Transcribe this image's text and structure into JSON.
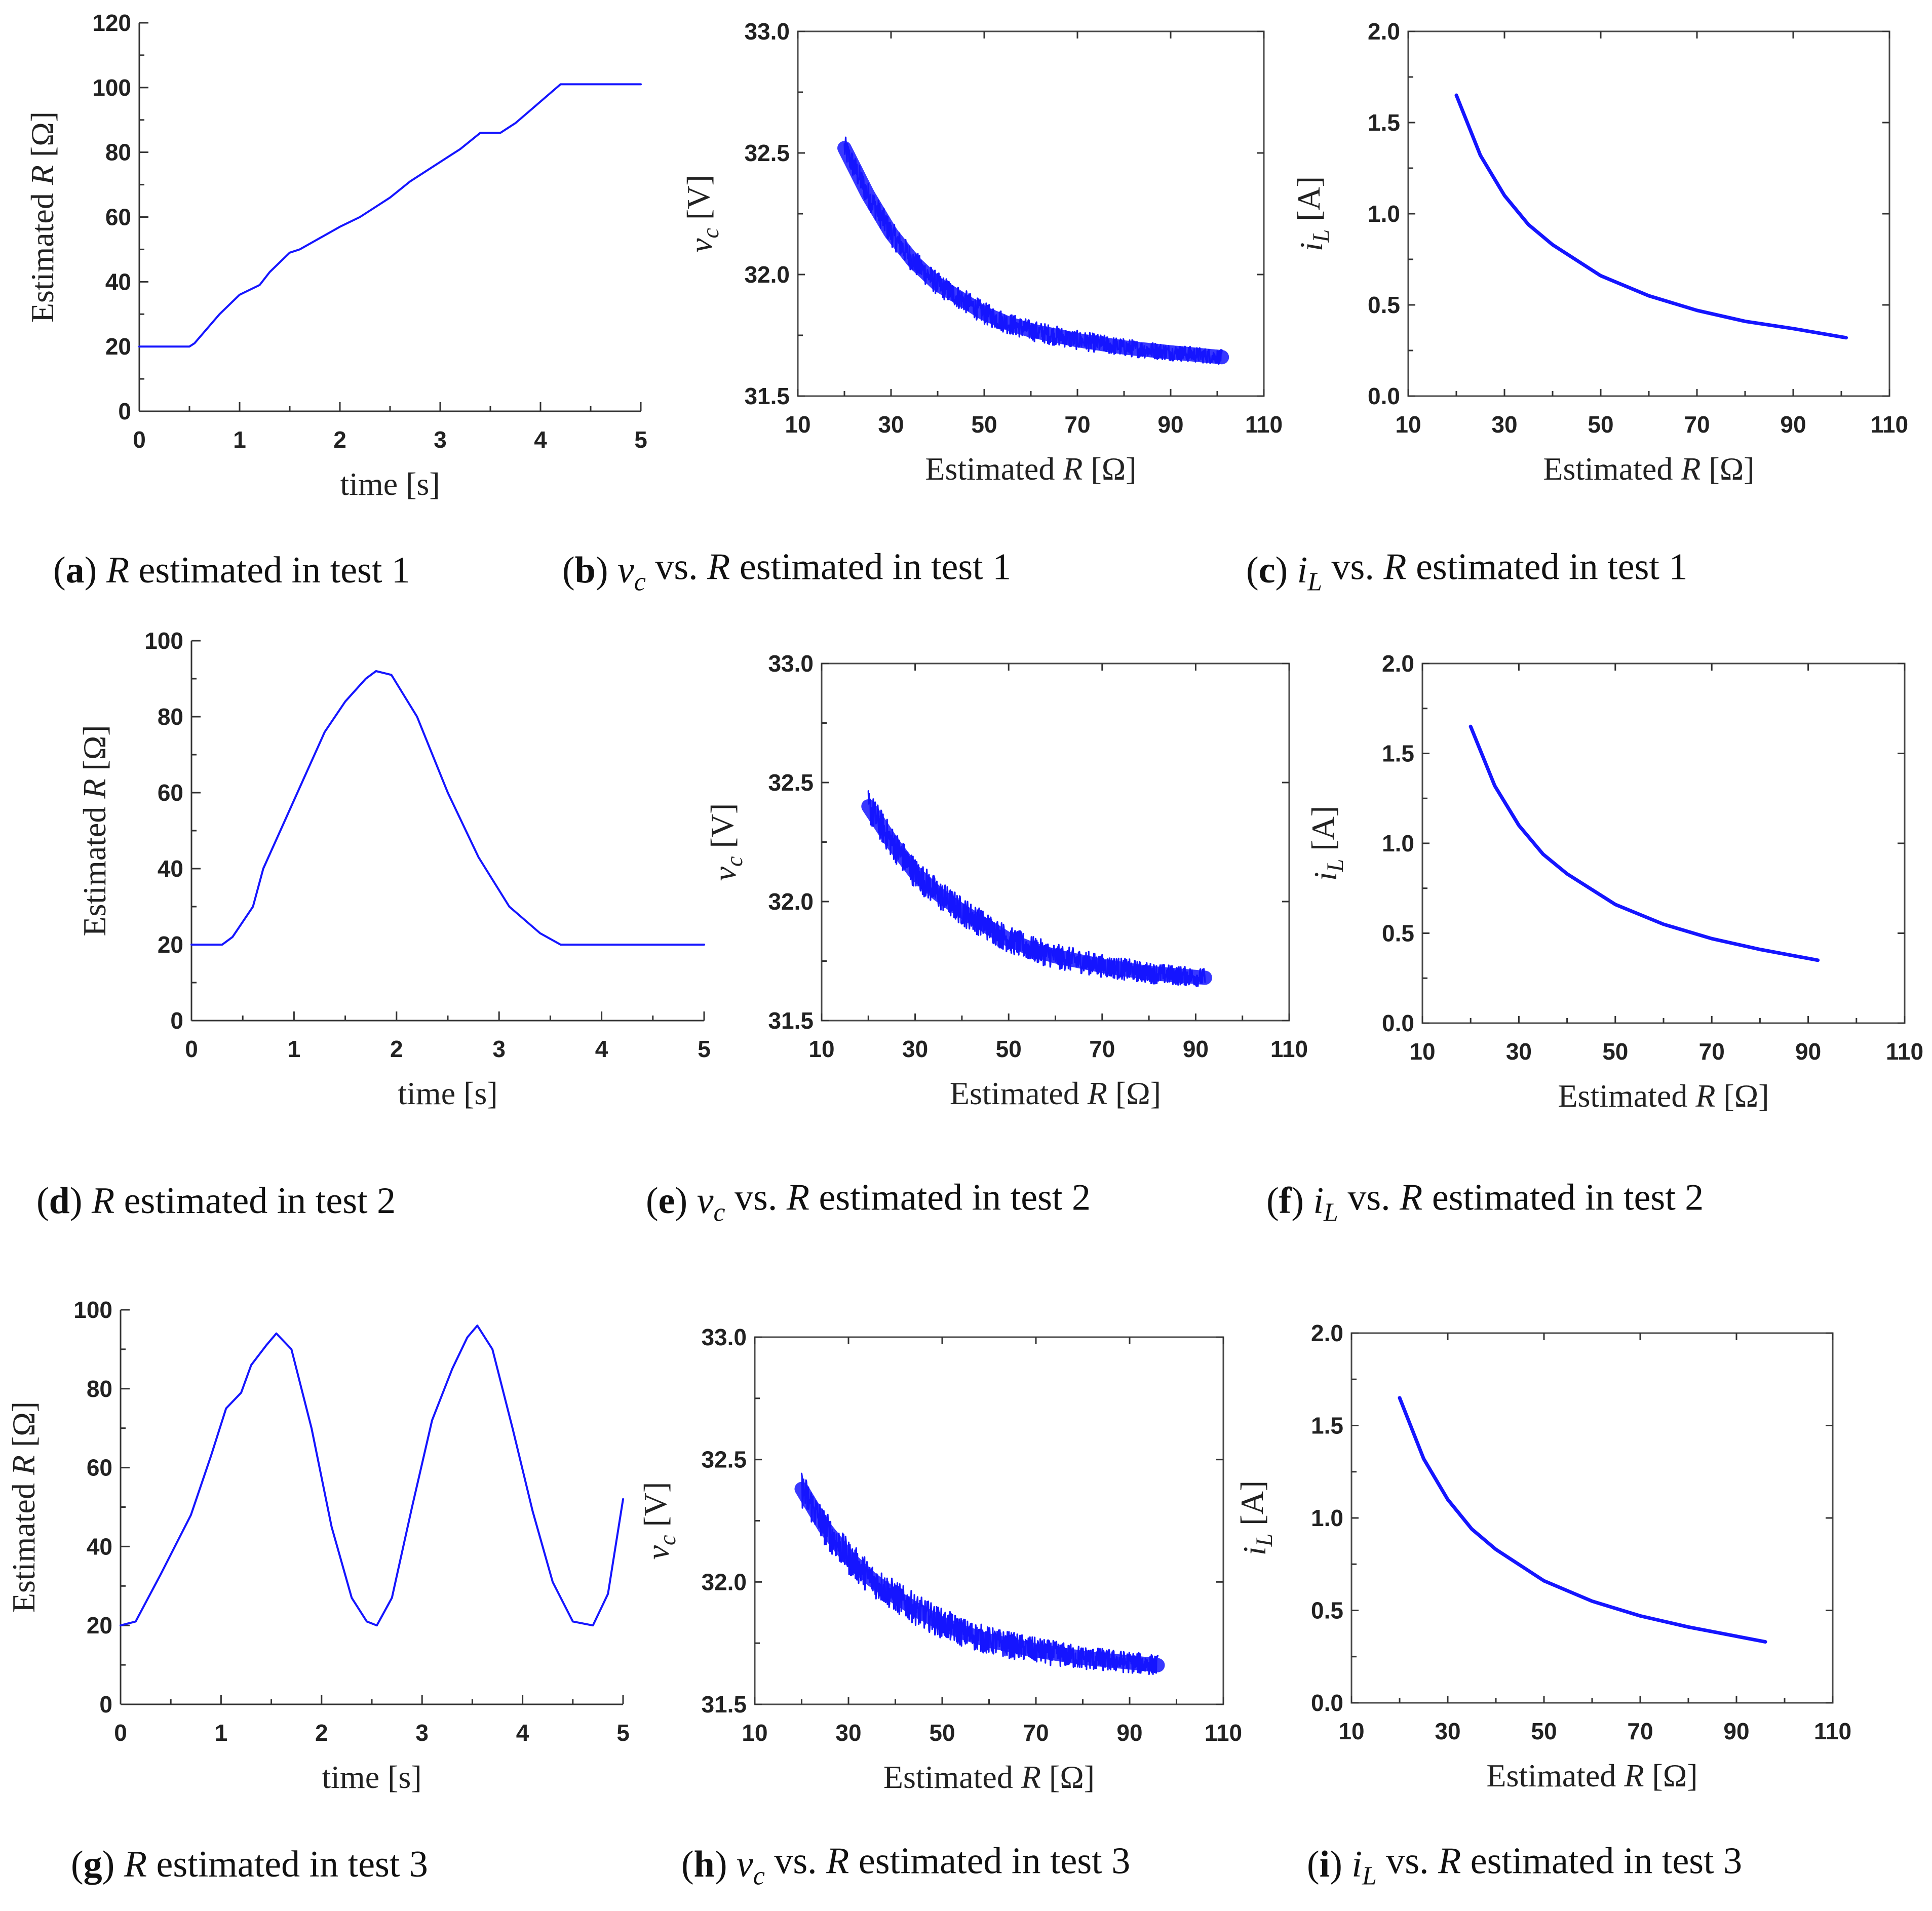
{
  "chart_data": [
    {
      "id": "a",
      "type": "line",
      "caption": {
        "letter": "a",
        "text": "R  estimated in test 1"
      },
      "xlabel": "time [s]",
      "ylabel": "Estimated  R [Ω]",
      "xlim": [
        0,
        5
      ],
      "ylim": [
        0,
        120
      ],
      "xticks": [
        "0",
        "1",
        "2",
        "3",
        "4",
        "5"
      ],
      "yticks": [
        "0",
        "20",
        "40",
        "60",
        "80",
        "100",
        "120"
      ],
      "series": [
        {
          "name": "R",
          "x": [
            0,
            0.5,
            0.55,
            0.8,
            1.0,
            1.2,
            1.3,
            1.5,
            1.6,
            2.0,
            2.2,
            2.5,
            2.7,
            3.0,
            3.2,
            3.4,
            3.6,
            3.75,
            3.9,
            4.05,
            4.2,
            4.6,
            5.0
          ],
          "y": [
            20,
            20,
            21,
            30,
            36,
            39,
            43,
            49,
            50,
            57,
            60,
            66,
            71,
            77,
            81,
            86,
            86,
            89,
            93,
            97,
            101,
            101,
            101
          ]
        }
      ]
    },
    {
      "id": "b",
      "type": "scatter",
      "caption": {
        "letter": "b",
        "text": "v_c  vs.  R  estimated in test 1"
      },
      "xlabel": "Estimated  R [Ω]",
      "ylabel": "v_c [V]",
      "xlim": [
        10,
        110
      ],
      "ylim": [
        31.5,
        33.0
      ],
      "xticks": [
        "10",
        "30",
        "50",
        "70",
        "90",
        "110"
      ],
      "yticks": [
        "31.5",
        "32.0",
        "32.5",
        "33.0"
      ],
      "series": [
        {
          "name": "v_c",
          "x": [
            20,
            25,
            30,
            35,
            40,
            45,
            50,
            55,
            60,
            70,
            80,
            90,
            101
          ],
          "y": [
            32.52,
            32.33,
            32.17,
            32.05,
            31.96,
            31.9,
            31.84,
            31.8,
            31.77,
            31.73,
            31.7,
            31.68,
            31.66
          ],
          "noise": 0.055
        }
      ]
    },
    {
      "id": "c",
      "type": "line",
      "caption": {
        "letter": "c",
        "text": "i_L  vs.  R  estimated in test 1"
      },
      "xlabel": "Estimated  R [Ω]",
      "ylabel": "i_L [A]",
      "xlim": [
        10,
        110
      ],
      "ylim": [
        0.0,
        2.0
      ],
      "xticks": [
        "10",
        "30",
        "50",
        "70",
        "90",
        "110"
      ],
      "yticks": [
        "0.0",
        "0.5",
        "1.0",
        "1.5",
        "2.0"
      ],
      "series": [
        {
          "name": "i_L",
          "x": [
            20,
            25,
            30,
            35,
            40,
            50,
            60,
            70,
            80,
            90,
            101
          ],
          "y": [
            1.65,
            1.32,
            1.1,
            0.94,
            0.83,
            0.66,
            0.55,
            0.47,
            0.41,
            0.37,
            0.32
          ]
        }
      ]
    },
    {
      "id": "d",
      "type": "line",
      "caption": {
        "letter": "d",
        "text": "R  estimated in test 2"
      },
      "xlabel": "time [s]",
      "ylabel": "Estimated  R [Ω]",
      "xlim": [
        0,
        5
      ],
      "ylim": [
        0,
        100
      ],
      "xticks": [
        "0",
        "1",
        "2",
        "3",
        "4",
        "5"
      ],
      "yticks": [
        "0",
        "20",
        "40",
        "60",
        "80",
        "100"
      ],
      "series": [
        {
          "name": "R",
          "x": [
            0,
            0.3,
            0.4,
            0.6,
            0.7,
            0.9,
            1.1,
            1.3,
            1.5,
            1.7,
            1.8,
            1.95,
            2.2,
            2.5,
            2.8,
            3.1,
            3.4,
            3.6,
            4.0,
            5.0
          ],
          "y": [
            20,
            20,
            22,
            30,
            40,
            52,
            64,
            76,
            84,
            90,
            92,
            91,
            80,
            60,
            43,
            30,
            23,
            20,
            20,
            20
          ]
        }
      ]
    },
    {
      "id": "e",
      "type": "scatter",
      "caption": {
        "letter": "e",
        "text": "v_c  vs.  R  estimated in test 2"
      },
      "xlabel": "Estimated  R [Ω]",
      "ylabel": "v_c [V]",
      "xlim": [
        10,
        110
      ],
      "ylim": [
        31.5,
        33.0
      ],
      "xticks": [
        "10",
        "30",
        "50",
        "70",
        "90",
        "110"
      ],
      "yticks": [
        "31.5",
        "32.0",
        "32.5",
        "33.0"
      ],
      "series": [
        {
          "name": "v_c",
          "x": [
            20,
            25,
            30,
            35,
            40,
            45,
            50,
            55,
            60,
            70,
            80,
            92
          ],
          "y": [
            32.4,
            32.25,
            32.12,
            32.03,
            31.96,
            31.9,
            31.84,
            31.8,
            31.77,
            31.73,
            31.7,
            31.68
          ],
          "noise": 0.07
        }
      ]
    },
    {
      "id": "f",
      "type": "line",
      "caption": {
        "letter": "f",
        "text": "i_L  vs.  R  estimated in test 2"
      },
      "xlabel": "Estimated  R [Ω]",
      "ylabel": "i_L [A]",
      "xlim": [
        10,
        110
      ],
      "ylim": [
        0.0,
        2.0
      ],
      "xticks": [
        "10",
        "30",
        "50",
        "70",
        "90",
        "110"
      ],
      "yticks": [
        "0.0",
        "0.5",
        "1.0",
        "1.5",
        "2.0"
      ],
      "series": [
        {
          "name": "i_L",
          "x": [
            20,
            25,
            30,
            35,
            40,
            50,
            60,
            70,
            80,
            92
          ],
          "y": [
            1.65,
            1.32,
            1.1,
            0.94,
            0.83,
            0.66,
            0.55,
            0.47,
            0.41,
            0.35
          ]
        }
      ]
    },
    {
      "id": "g",
      "type": "line",
      "caption": {
        "letter": "g",
        "text": "R  estimated in test 3"
      },
      "xlabel": "time [s]",
      "ylabel": "Estimated  R [Ω]",
      "xlim": [
        0,
        5
      ],
      "ylim": [
        0,
        100
      ],
      "xticks": [
        "0",
        "1",
        "2",
        "3",
        "4",
        "5"
      ],
      "yticks": [
        "0",
        "20",
        "40",
        "60",
        "80",
        "100"
      ],
      "series": [
        {
          "name": "R",
          "x": [
            0,
            0.15,
            0.4,
            0.7,
            0.9,
            1.05,
            1.2,
            1.3,
            1.45,
            1.55,
            1.7,
            1.9,
            2.1,
            2.3,
            2.45,
            2.55,
            2.7,
            2.9,
            3.1,
            3.3,
            3.45,
            3.55,
            3.7,
            3.9,
            4.1,
            4.3,
            4.5,
            4.7,
            4.85,
            5.0
          ],
          "y": [
            20,
            21,
            33,
            48,
            63,
            75,
            79,
            86,
            91,
            94,
            90,
            70,
            45,
            27,
            21,
            20,
            27,
            50,
            72,
            85,
            93,
            96,
            90,
            70,
            49,
            31,
            21,
            20,
            28,
            52
          ]
        }
      ]
    },
    {
      "id": "h",
      "type": "scatter",
      "caption": {
        "letter": "h",
        "text": "v_c  vs.  R  estimated in test 3"
      },
      "xlabel": "Estimated  R [Ω]",
      "ylabel": "v_c [V]",
      "xlim": [
        10,
        110
      ],
      "ylim": [
        31.5,
        33.0
      ],
      "xticks": [
        "10",
        "30",
        "50",
        "70",
        "90",
        "110"
      ],
      "yticks": [
        "31.5",
        "32.0",
        "32.5",
        "33.0"
      ],
      "series": [
        {
          "name": "v_c",
          "x": [
            20,
            25,
            30,
            35,
            40,
            45,
            50,
            55,
            60,
            70,
            80,
            96
          ],
          "y": [
            32.38,
            32.22,
            32.1,
            32.01,
            31.94,
            31.88,
            31.83,
            31.79,
            31.76,
            31.72,
            31.69,
            31.66
          ],
          "noise": 0.075
        }
      ]
    },
    {
      "id": "i",
      "type": "line",
      "caption": {
        "letter": "i",
        "text": "i_L  vs.  R  estimated in test 3"
      },
      "xlabel": "Estimated  R [Ω]",
      "ylabel": "i_L [A]",
      "xlim": [
        10,
        110
      ],
      "ylim": [
        0.0,
        2.0
      ],
      "xticks": [
        "10",
        "30",
        "50",
        "70",
        "90",
        "110"
      ],
      "yticks": [
        "0.0",
        "0.5",
        "1.0",
        "1.5",
        "2.0"
      ],
      "series": [
        {
          "name": "i_L",
          "x": [
            20,
            25,
            30,
            35,
            40,
            50,
            60,
            70,
            80,
            90,
            96
          ],
          "y": [
            1.65,
            1.32,
            1.1,
            0.94,
            0.83,
            0.66,
            0.55,
            0.47,
            0.41,
            0.36,
            0.33
          ]
        }
      ]
    }
  ],
  "style": {
    "trace_color": "#1515ff",
    "frame_color": "#4a4a4a",
    "text_color": "#222222"
  }
}
